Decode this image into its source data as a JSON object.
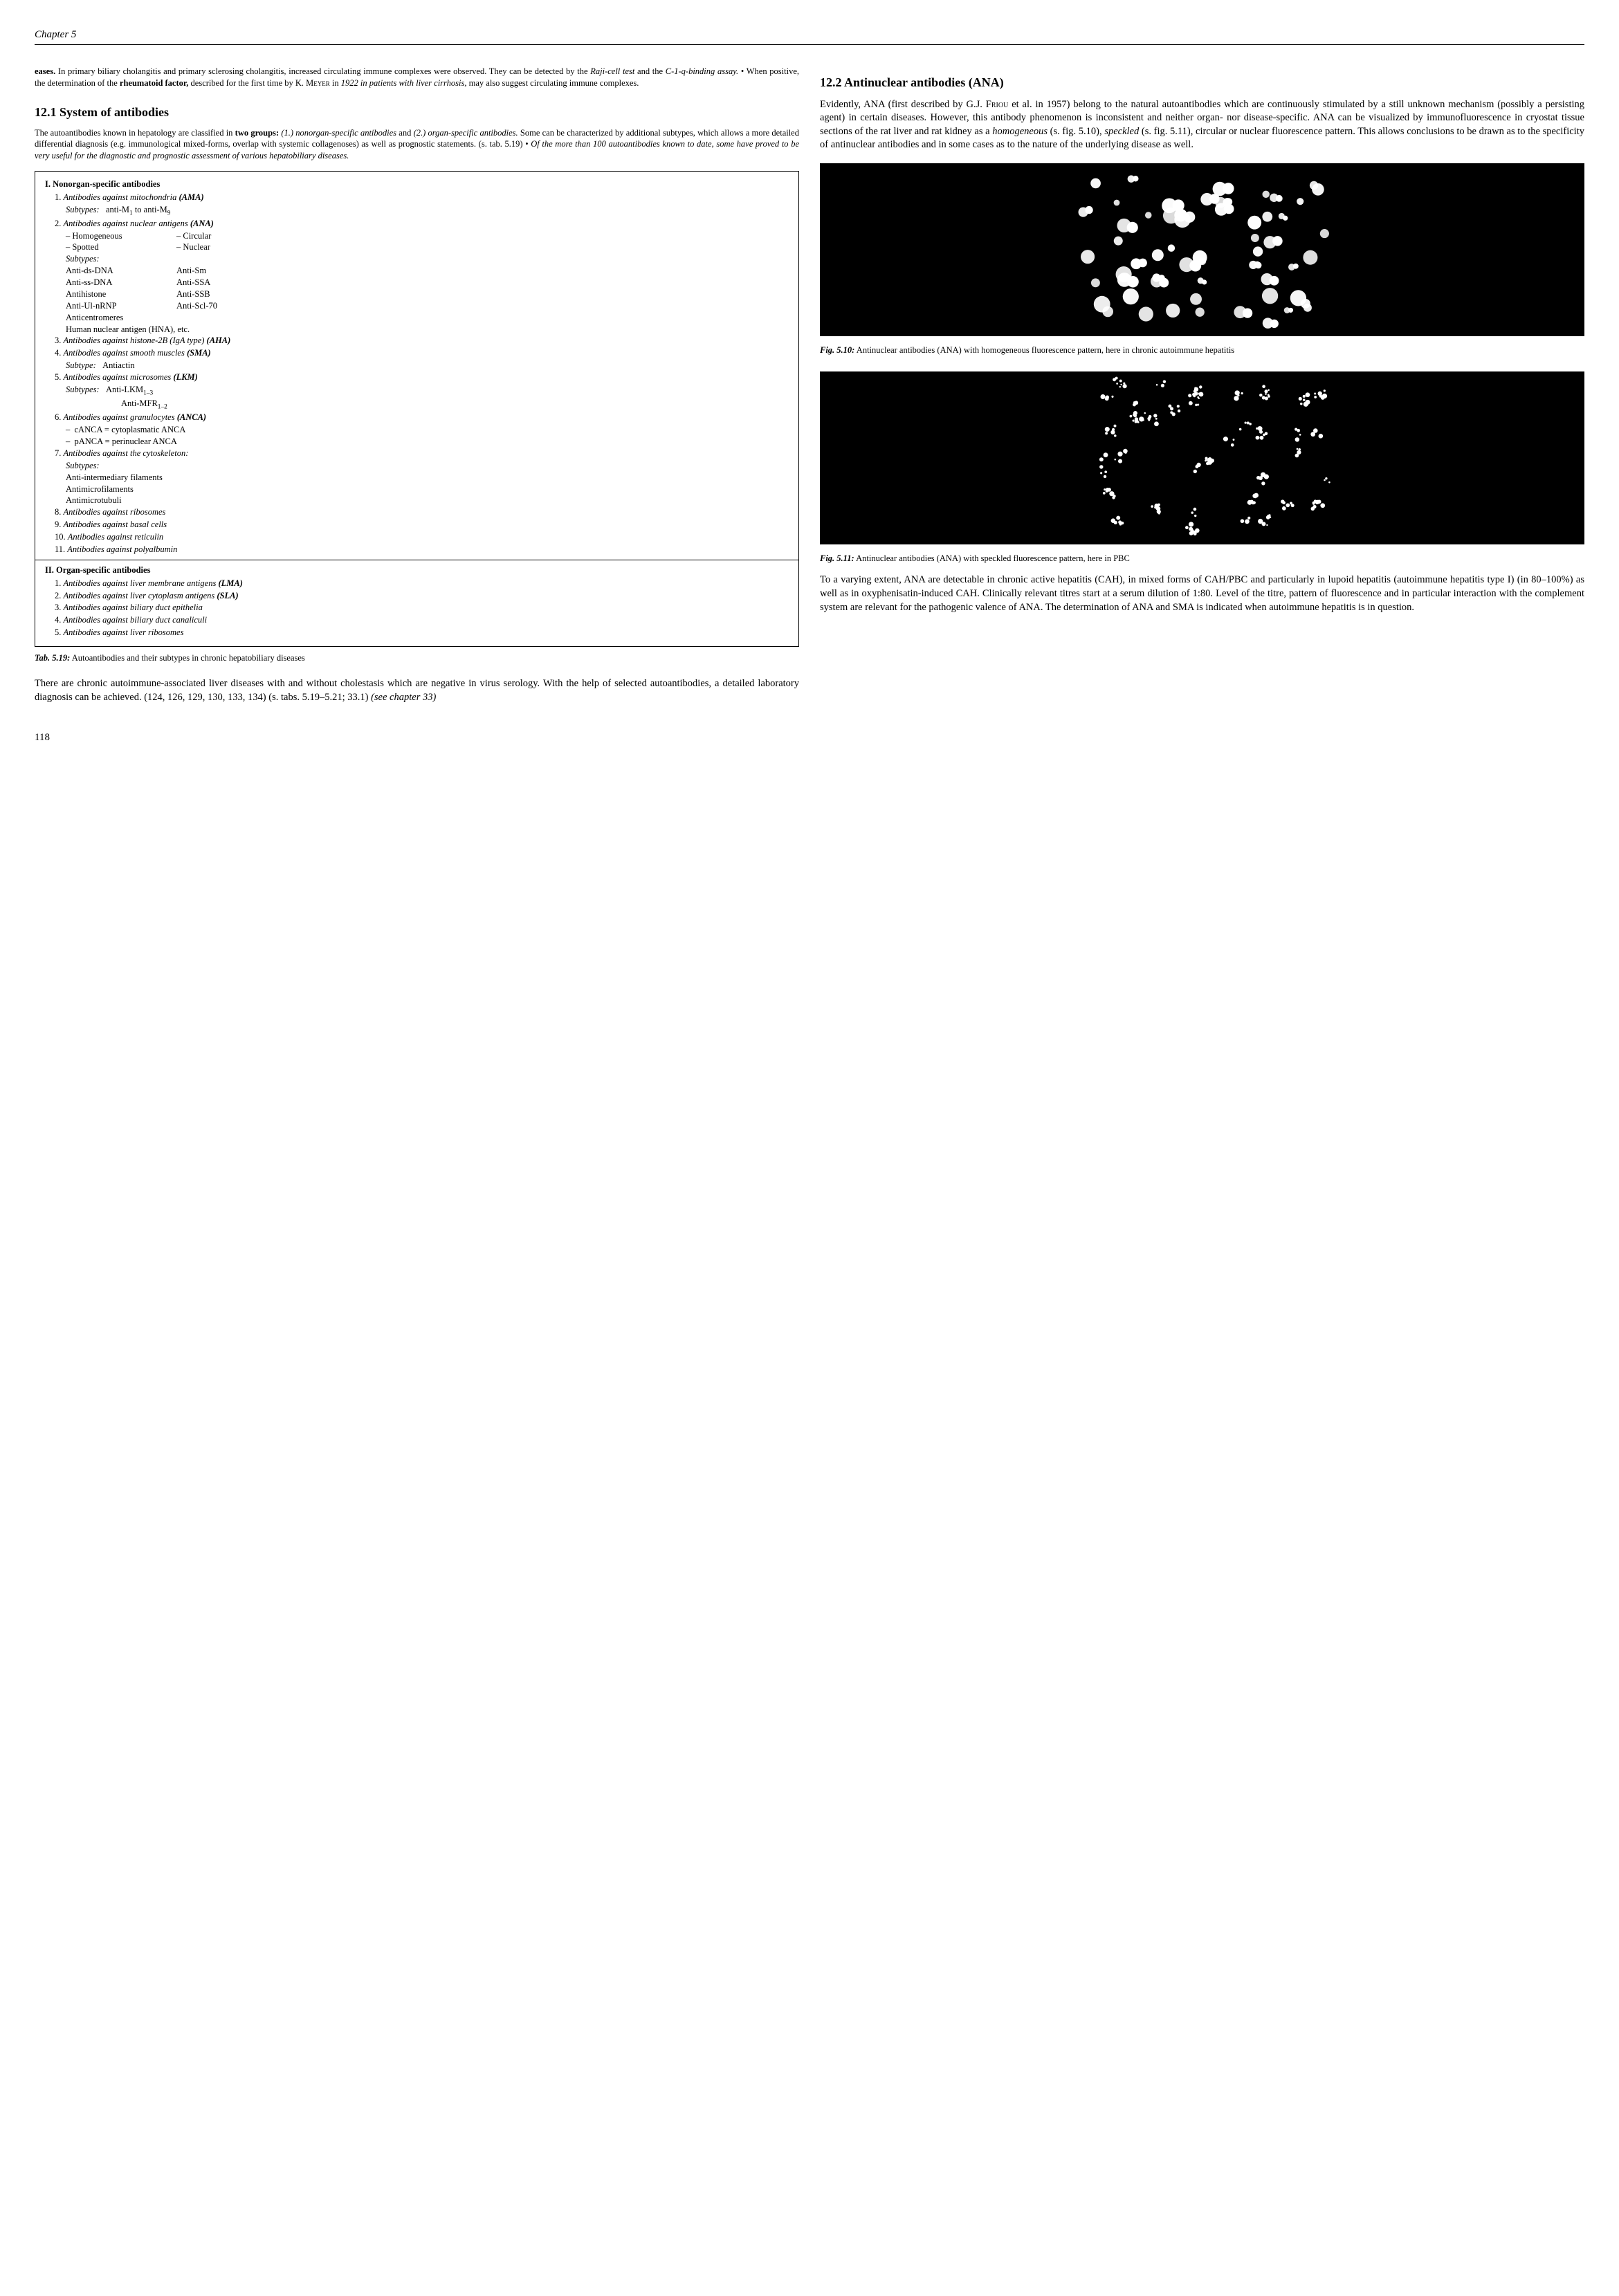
{
  "chapter_header": "Chapter 5",
  "page_number": "118",
  "left": {
    "intro_html": "<b>eases.</b> In primary biliary cholangitis and primary sclerosing cholangitis, increased circulating immune complexes were observed. They can be detected by the <i>Raji-cell test</i> and the <i>C-1-q-binding assay.</i> • When positive, the determination of the <b>rheumatoid factor,</b> described for the first time by K. <span class='smallcaps'>Meyer</span> in <i>1922 in patients with liver cirrhosis,</i> may also suggest circulating immune complexes.",
    "h1": "12.1  System of antibodies",
    "p1_html": "The autoantibodies known in hepatology are classified in <b>two groups:</b> <i>(1.) nonorgan-specific antibodies</i> and <i>(2.) organ-specific antibodies.</i> Some can be characterized by additional subtypes, which allows a more detailed differential diagnosis (e.g. immunological mixed-forms, overlap with systemic collagenoses) as well as prognostic statements. (s. tab. 5.19) • <i>Of the more than 100 autoantibodies known to date, some have proved to be very useful for the diagnostic and prognostic assessment of various hepatobiliary diseases.</i>",
    "box": {
      "section1_header": "I.  Nonorgan-specific antibodies",
      "items1": [
        {
          "n": "1.",
          "title": "Antibodies against mitochondria",
          "abbr": "(AMA)",
          "sub": [
            {
              "type": "line",
              "html": "<i>Subtypes:</i>&nbsp;&nbsp;&nbsp;anti-M<sub>1</sub> to anti-M<sub>9</sub>"
            }
          ]
        },
        {
          "n": "2.",
          "title": "Antibodies against nuclear antigens",
          "abbr": "(ANA)",
          "sub": [
            {
              "type": "two",
              "l": "– Homogeneous",
              "r": "– Circular"
            },
            {
              "type": "two",
              "l": "– Spotted",
              "r": "– Nuclear"
            },
            {
              "type": "line",
              "html": "<i>Subtypes:</i>"
            },
            {
              "type": "two",
              "l": "Anti-ds-DNA",
              "r": "Anti-Sm"
            },
            {
              "type": "two",
              "l": "Anti-ss-DNA",
              "r": "Anti-SSA"
            },
            {
              "type": "two",
              "l": "Antihistone",
              "r": "Anti-SSB"
            },
            {
              "type": "two",
              "l": "Anti-Ul-nRNP",
              "r": "Anti-Scl-70"
            },
            {
              "type": "line",
              "html": "Anticentromeres"
            },
            {
              "type": "line",
              "html": "Human nuclear antigen (HNA), etc."
            }
          ]
        },
        {
          "n": "3.",
          "title": "Antibodies against histone-2B (IgA type)",
          "abbr": "(AHA)"
        },
        {
          "n": "4.",
          "title": "Antibodies against smooth muscles",
          "abbr": "(SMA)",
          "sub": [
            {
              "type": "line",
              "html": "<i>Subtype:</i>&nbsp;&nbsp;&nbsp;Antiactin"
            }
          ]
        },
        {
          "n": "5.",
          "title": "Antibodies against microsomes",
          "abbr": "(LKM)",
          "sub": [
            {
              "type": "line",
              "html": "<i>Subtypes:</i>&nbsp;&nbsp;&nbsp;Anti-LKM<sub>1–3</sub>"
            },
            {
              "type": "line2",
              "html": "Anti-MFR<sub>1–2</sub>"
            }
          ]
        },
        {
          "n": "6.",
          "title": "Antibodies against granulocytes",
          "abbr": "(ANCA)",
          "sub": [
            {
              "type": "line",
              "html": "–&nbsp;&nbsp;cANCA = cytoplasmatic ANCA"
            },
            {
              "type": "line",
              "html": "–&nbsp;&nbsp;pANCA = perinuclear ANCA"
            }
          ]
        },
        {
          "n": "7.",
          "title": "Antibodies against the cytoskeleton:",
          "abbr": "",
          "sub": [
            {
              "type": "line",
              "html": "<i>Subtypes:</i>"
            },
            {
              "type": "line",
              "html": "Anti-intermediary filaments"
            },
            {
              "type": "line",
              "html": "Antimicrofilaments"
            },
            {
              "type": "line",
              "html": "Antimicrotubuli"
            }
          ]
        },
        {
          "n": "8.",
          "title": "Antibodies against ribosomes",
          "abbr": ""
        },
        {
          "n": "9.",
          "title": "Antibodies against basal cells",
          "abbr": ""
        },
        {
          "n": "10.",
          "title": "Antibodies against reticulin",
          "abbr": ""
        },
        {
          "n": "11.",
          "title": "Antibodies against polyalbumin",
          "abbr": ""
        }
      ],
      "section2_header": "II. Organ-specific antibodies",
      "items2": [
        {
          "n": "1.",
          "title": "Antibodies against liver membrane antigens",
          "abbr": "(LMA)"
        },
        {
          "n": "2.",
          "title": "Antibodies against liver cytoplasm antigens",
          "abbr": "(SLA)"
        },
        {
          "n": "3.",
          "title": "Antibodies against biliary duct epithelia",
          "abbr": ""
        },
        {
          "n": "4.",
          "title": "Antibodies against biliary duct canaliculi",
          "abbr": ""
        },
        {
          "n": "5.",
          "title": "Antibodies against liver ribosomes",
          "abbr": ""
        }
      ]
    },
    "tab_caption_html": "<b>Tab. 5.19:</b> Autoantibodies and their subtypes in chronic hepatobiliary diseases",
    "p2_html": "There are chronic autoimmune-associated liver diseases with and without cholestasis which are negative in virus serology. With the help of selected autoantibodies, a detailed laboratory diagnosis can be achieved. (124, 126, 129, 130, 133, 134) (s. tabs. 5.19–5.21; 33.1) <i>(see chapter 33)</i>"
  },
  "right": {
    "h2": "12.2  Antinuclear antibodies (ANA)",
    "p1_html": "Evidently, ANA (first described by G.J. <span class='smallcaps'>Friou</span> et al. in 1957) belong to the natural autoantibodies which are continuously stimulated by a still unknown mechanism (possibly a persisting agent) in certain diseases. However, this antibody phenomenon is inconsistent and neither organ- nor disease-specific. ANA can be visualized by immunofluorescence in cryostat tissue sections of the rat liver and rat kidney as a <i>homogeneous</i> (s. fig. 5.10), <i>speckled</i> (s. fig. 5.11), circular or nuclear fluorescence pattern. This allows conclusions to be drawn as to the specificity of antinuclear antibodies and in some cases as to the nature of the underlying disease as well.",
    "fig1_caption_html": "<b>Fig. 5.10:</b> Antinuclear antibodies (ANA) with homogeneous fluorescence pattern, here in chronic autoimmune hepatitis",
    "fig2_caption_html": "<b>Fig. 5.11:</b> Antinuclear antibodies (ANA) with speckled fluorescence pattern, here in PBC",
    "p2_html": "To a varying extent, ANA are detectable in chronic active hepatitis (CAH), in mixed forms of CAH/PBC and particularly in lupoid hepatitis (autoimmune hepatitis type I) (in 80–100%) as well as in oxyphenisatin-induced CAH. Clinically relevant titres start at a serum dilution of 1:80. Level of the titre, pattern of fluorescence and in particular interaction with the complement system are relevant for the pathogenic valence of ANA. The determination of ANA and SMA is indicated when autoimmune hepatitis is in question."
  },
  "figures": {
    "fig1": {
      "type": "microscopy",
      "background": "#000000",
      "dot_color": "#ffffff",
      "pattern": "homogeneous",
      "dot_count": 60
    },
    "fig2": {
      "type": "microscopy",
      "background": "#000000",
      "dot_color": "#ffffff",
      "pattern": "speckled",
      "cluster_count": 40
    }
  }
}
